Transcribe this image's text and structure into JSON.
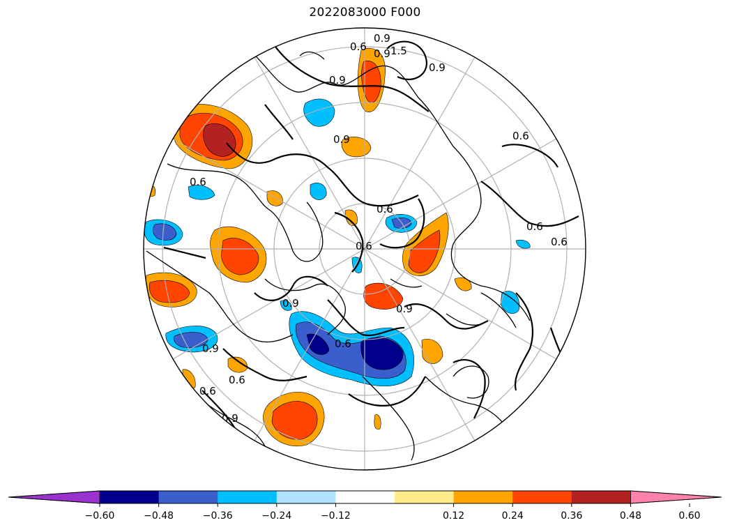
{
  "title": "2022083000 F000",
  "colorbar": {
    "colors": {
      "under": "#9a32cd",
      "bins": [
        "#00008b",
        "#3a5fcd",
        "#00bfff",
        "#b0e2ff",
        "#ffffff",
        "#ffec8b",
        "#ffa500",
        "#ff4500",
        "#b22222"
      ],
      "over": "#ff82ab"
    },
    "ticks": [
      "−0.60",
      "−0.48",
      "−0.36",
      "−0.24",
      "−0.12",
      "0.12",
      "0.24",
      "0.36",
      "0.48",
      "0.60"
    ]
  },
  "contour_labels": [
    "0.9",
    "0.6",
    "0.9",
    "1.5",
    "0.9",
    "0.9",
    "0.6",
    "0.9",
    "0.6",
    "0.6",
    "0.6",
    "0.6",
    "0.6",
    "0.9",
    "0.9",
    "0.6",
    "0.6",
    "0.9",
    "0.6",
    "0.9"
  ],
  "colors": {
    "contour": "#000000",
    "coast": "#000000",
    "grid": "#b0b0b0"
  }
}
